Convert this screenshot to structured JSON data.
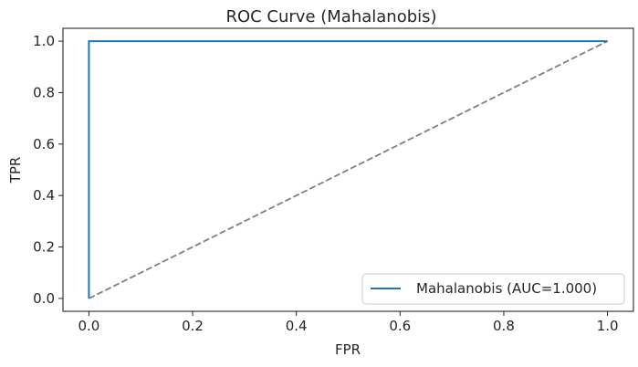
{
  "chart_data": {
    "type": "line",
    "title": "ROC Curve (Mahalanobis)",
    "xlabel": "FPR",
    "ylabel": "TPR",
    "xlim": [
      -0.05,
      1.05
    ],
    "ylim": [
      -0.05,
      1.05
    ],
    "xticks": [
      0.0,
      0.2,
      0.4,
      0.6,
      0.8,
      1.0
    ],
    "yticks": [
      0.0,
      0.2,
      0.4,
      0.6,
      0.8,
      1.0
    ],
    "xtick_labels": [
      "0.0",
      "0.2",
      "0.4",
      "0.6",
      "0.8",
      "1.0"
    ],
    "ytick_labels": [
      "0.0",
      "0.2",
      "0.4",
      "0.6",
      "0.8",
      "1.0"
    ],
    "grid": false,
    "legend_position": "bottom-right",
    "series": [
      {
        "name": "Mahalanobis (AUC=1.000)",
        "x": [
          0.0,
          0.0,
          1.0
        ],
        "y": [
          0.0,
          1.0,
          1.0
        ],
        "color": "#1f77b4",
        "style": "solid"
      },
      {
        "x": [
          0.0,
          1.0
        ],
        "y": [
          0.0,
          1.0
        ],
        "color": "#808080",
        "style": "dashed"
      }
    ]
  }
}
